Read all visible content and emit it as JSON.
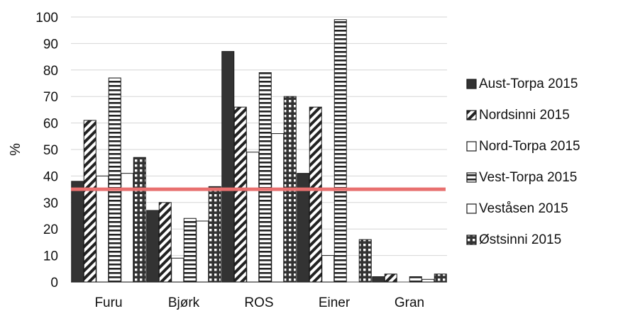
{
  "chart_data": {
    "type": "bar",
    "title": "",
    "xlabel": "",
    "ylabel": "%",
    "ylim": [
      0,
      100
    ],
    "yticks": [
      0,
      10,
      20,
      30,
      40,
      50,
      60,
      70,
      80,
      90,
      100
    ],
    "grid": true,
    "legend_position": "right",
    "categories": [
      "Furu",
      "Bjørk",
      "ROS",
      "Einer",
      "Gran"
    ],
    "series": [
      {
        "name": "Aust-Torpa 2015",
        "pattern": "solid",
        "values": [
          38,
          27,
          87,
          41,
          2
        ]
      },
      {
        "name": "Nordsinni 2015",
        "pattern": "diagonal-hatch",
        "values": [
          61,
          30,
          66,
          66,
          3
        ]
      },
      {
        "name": "Nord-Torpa 2015",
        "pattern": "empty",
        "values": [
          40,
          9,
          49,
          10,
          0
        ]
      },
      {
        "name": "Vest-Torpa 2015",
        "pattern": "horizontal-lines",
        "values": [
          77,
          24,
          79,
          99,
          2
        ]
      },
      {
        "name": "Veståsen 2015",
        "pattern": "empty",
        "values": [
          41,
          23,
          56,
          0,
          1
        ]
      },
      {
        "name": "Østsinni 2015",
        "pattern": "crosshatch",
        "values": [
          47,
          36,
          70,
          16,
          3
        ]
      }
    ],
    "reference_line": {
      "value": 35,
      "color": "#e8706f"
    }
  }
}
